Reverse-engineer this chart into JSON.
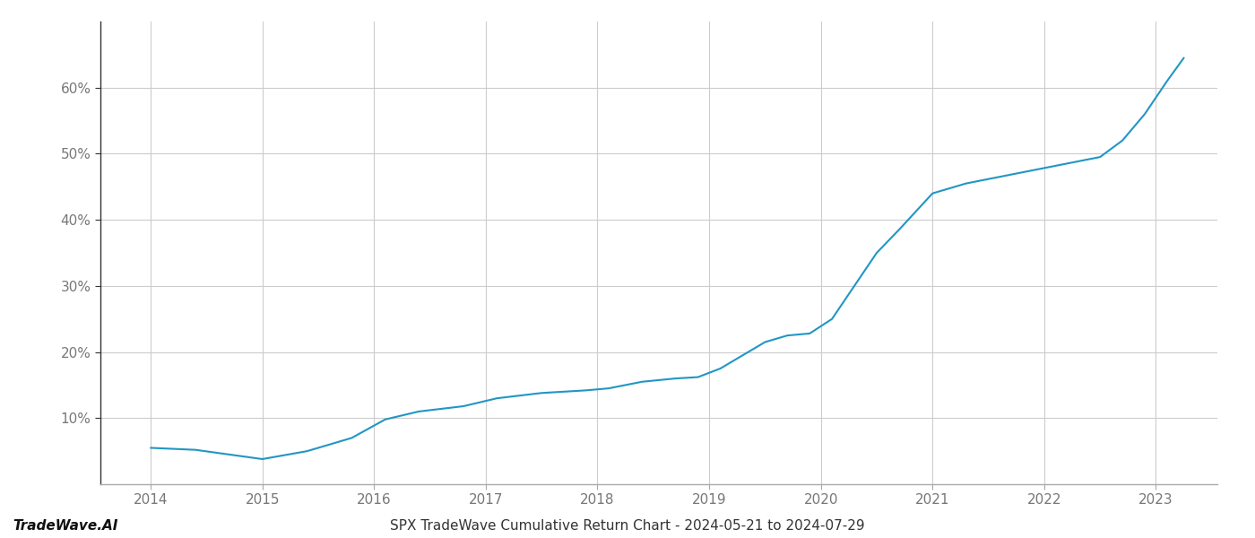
{
  "title": "SPX TradeWave Cumulative Return Chart - 2024-05-21 to 2024-07-29",
  "watermark": "TradeWave.AI",
  "x_values": [
    2014.0,
    2014.4,
    2015.0,
    2015.4,
    2015.8,
    2016.1,
    2016.4,
    2016.8,
    2017.1,
    2017.5,
    2017.9,
    2018.1,
    2018.4,
    2018.7,
    2018.9,
    2019.1,
    2019.3,
    2019.5,
    2019.7,
    2019.9,
    2020.1,
    2020.3,
    2020.5,
    2020.7,
    2021.0,
    2021.3,
    2021.6,
    2021.9,
    2022.2,
    2022.5,
    2022.7,
    2022.9,
    2023.1,
    2023.25
  ],
  "y_values": [
    5.5,
    5.2,
    3.8,
    5.0,
    7.0,
    9.8,
    11.0,
    11.8,
    13.0,
    13.8,
    14.2,
    14.5,
    15.5,
    16.0,
    16.2,
    17.5,
    19.5,
    21.5,
    22.5,
    22.8,
    25.0,
    30.0,
    35.0,
    38.5,
    44.0,
    45.5,
    46.5,
    47.5,
    48.5,
    49.5,
    52.0,
    56.0,
    61.0,
    64.5
  ],
  "line_color": "#2196c4",
  "line_width": 1.5,
  "background_color": "#ffffff",
  "grid_color": "#cccccc",
  "ylim": [
    0,
    70
  ],
  "xlim": [
    2013.55,
    2023.55
  ],
  "yticks": [
    10,
    20,
    30,
    40,
    50,
    60
  ],
  "xticks": [
    2014,
    2015,
    2016,
    2017,
    2018,
    2019,
    2020,
    2021,
    2022,
    2023
  ],
  "tick_label_color": "#777777",
  "title_color": "#333333",
  "watermark_color": "#111111",
  "title_fontsize": 11,
  "watermark_fontsize": 11,
  "tick_fontsize": 11,
  "spine_color": "#aaaaaa",
  "left_spine_color": "#333333"
}
